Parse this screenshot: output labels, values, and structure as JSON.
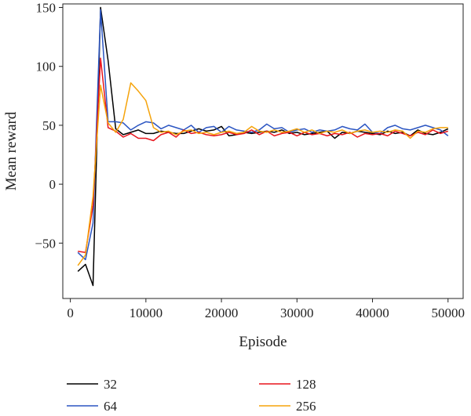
{
  "chart_data": {
    "type": "line",
    "xlabel": "Episode",
    "ylabel": "Mean reward",
    "xlim": [
      -1000,
      52000
    ],
    "ylim": [
      -97,
      153
    ],
    "x_ticks": [
      0,
      10000,
      20000,
      30000,
      40000,
      50000
    ],
    "x_tick_labels": [
      "0",
      "10000",
      "20000",
      "30000",
      "40000",
      "50000"
    ],
    "y_ticks": [
      -50,
      0,
      50,
      100,
      150
    ],
    "y_tick_labels": [
      "−50",
      "0",
      "50",
      "100",
      "150"
    ],
    "grid": false,
    "legend_position": "below",
    "x": [
      1000,
      2000,
      3000,
      4000,
      5000,
      6000,
      7000,
      8000,
      9000,
      10000,
      11000,
      12000,
      13000,
      14000,
      15000,
      16000,
      17000,
      18000,
      19000,
      20000,
      21000,
      22000,
      23000,
      24000,
      25000,
      26000,
      27000,
      28000,
      29000,
      30000,
      31000,
      32000,
      33000,
      34000,
      35000,
      36000,
      37000,
      38000,
      39000,
      40000,
      41000,
      42000,
      43000,
      44000,
      45000,
      46000,
      47000,
      48000,
      49000,
      50000
    ],
    "series": [
      {
        "name": "32",
        "color": "#000000",
        "values": [
          -74,
          -68,
          -86,
          150,
          105,
          47,
          42,
          44,
          46,
          43,
          43,
          45,
          44,
          43,
          43,
          45,
          47,
          45,
          46,
          49,
          41,
          42,
          44,
          43,
          44,
          45,
          44,
          46,
          43,
          44,
          42,
          43,
          44,
          45,
          39,
          44,
          43,
          45,
          44,
          43,
          42,
          45,
          43,
          44,
          41,
          46,
          43,
          42,
          44,
          47
        ]
      },
      {
        "name": "64",
        "color": "#2b55c2",
        "values": [
          -58,
          -64,
          -33,
          148,
          53,
          53,
          52,
          46,
          50,
          53,
          52,
          47,
          50,
          48,
          46,
          50,
          44,
          48,
          49,
          44,
          49,
          46,
          45,
          44,
          46,
          51,
          47,
          48,
          44,
          46,
          47,
          44,
          46,
          45,
          46,
          49,
          47,
          46,
          51,
          44,
          43,
          48,
          50,
          47,
          46,
          48,
          50,
          48,
          46,
          41
        ]
      },
      {
        "name": "128",
        "color": "#e8141c",
        "values": [
          -57,
          -58,
          -18,
          107,
          48,
          45,
          40,
          43,
          39,
          39,
          37,
          42,
          44,
          40,
          46,
          43,
          44,
          42,
          41,
          42,
          44,
          42,
          43,
          46,
          42,
          45,
          41,
          43,
          44,
          41,
          44,
          42,
          43,
          41,
          43,
          42,
          44,
          40,
          43,
          42,
          43,
          41,
          45,
          43,
          41,
          44,
          42,
          46,
          43,
          45
        ]
      },
      {
        "name": "256",
        "color": "#f5a30a",
        "values": [
          -69,
          -60,
          -10,
          84,
          52,
          44,
          55,
          86,
          79,
          71,
          48,
          44,
          45,
          42,
          45,
          46,
          43,
          44,
          42,
          44,
          45,
          43,
          44,
          49,
          45,
          44,
          46,
          44,
          45,
          47,
          44,
          46,
          43,
          45,
          44,
          46,
          43,
          45,
          46,
          44,
          45,
          44,
          46,
          45,
          39,
          45,
          44,
          47,
          48,
          48
        ]
      }
    ]
  }
}
